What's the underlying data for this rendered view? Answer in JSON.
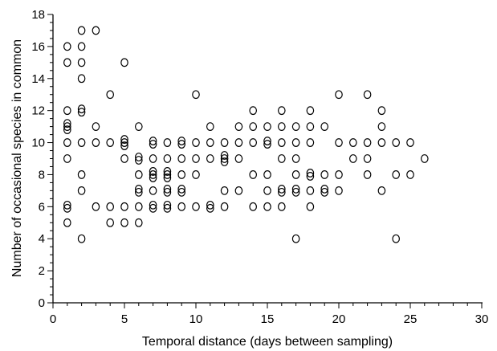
{
  "chart_data": {
    "type": "scatter",
    "title": "",
    "xlabel": "Temporal distance (days between sampling)",
    "ylabel": "Number of occasional species in common",
    "xlim": [
      0,
      30
    ],
    "ylim": [
      0,
      18
    ],
    "x_ticks": [
      "0",
      "5",
      "10",
      "15",
      "20",
      "25",
      "30"
    ],
    "y_ticks": [
      "0",
      "2",
      "4",
      "6",
      "8",
      "10",
      "12",
      "14",
      "16",
      "18"
    ],
    "grid": false,
    "marker": "open-circle",
    "marker_color": "#000000",
    "points": [
      [
        1,
        16
      ],
      [
        1,
        15
      ],
      [
        1,
        12
      ],
      [
        1,
        11.2
      ],
      [
        1,
        11
      ],
      [
        1,
        10.8
      ],
      [
        1,
        10
      ],
      [
        1,
        9
      ],
      [
        1,
        6.1
      ],
      [
        1,
        5.9
      ],
      [
        1,
        5
      ],
      [
        2,
        17
      ],
      [
        2,
        16
      ],
      [
        2,
        15
      ],
      [
        2,
        14
      ],
      [
        2,
        12.1
      ],
      [
        2,
        11.9
      ],
      [
        2,
        10
      ],
      [
        2,
        8
      ],
      [
        2,
        7
      ],
      [
        2,
        4
      ],
      [
        3,
        17
      ],
      [
        3,
        11
      ],
      [
        3,
        10
      ],
      [
        3,
        6
      ],
      [
        4,
        13
      ],
      [
        4,
        10
      ],
      [
        4,
        6
      ],
      [
        4,
        5
      ],
      [
        5,
        15
      ],
      [
        5,
        10.2
      ],
      [
        5,
        10
      ],
      [
        5,
        9.8
      ],
      [
        5,
        9
      ],
      [
        5,
        6
      ],
      [
        5,
        5
      ],
      [
        6,
        11
      ],
      [
        6,
        9.1
      ],
      [
        6,
        8.9
      ],
      [
        6,
        8
      ],
      [
        6,
        7.1
      ],
      [
        6,
        6.9
      ],
      [
        6,
        6
      ],
      [
        6,
        5
      ],
      [
        7,
        10.1
      ],
      [
        7,
        9.9
      ],
      [
        7,
        9
      ],
      [
        7,
        8.2
      ],
      [
        7,
        8
      ],
      [
        7,
        7.8
      ],
      [
        7,
        7
      ],
      [
        7,
        6.1
      ],
      [
        7,
        5.9
      ],
      [
        8,
        10
      ],
      [
        8,
        9
      ],
      [
        8,
        8.2
      ],
      [
        8,
        8
      ],
      [
        8,
        7.8
      ],
      [
        8,
        7.1
      ],
      [
        8,
        6.9
      ],
      [
        8,
        6.1
      ],
      [
        8,
        5.9
      ],
      [
        9,
        10.1
      ],
      [
        9,
        9.9
      ],
      [
        9,
        9
      ],
      [
        9,
        8
      ],
      [
        9,
        7.1
      ],
      [
        9,
        6.9
      ],
      [
        9,
        6
      ],
      [
        10,
        13
      ],
      [
        10,
        10
      ],
      [
        10,
        9
      ],
      [
        10,
        8
      ],
      [
        10,
        6
      ],
      [
        11,
        11
      ],
      [
        11,
        10
      ],
      [
        11,
        9
      ],
      [
        11,
        6.1
      ],
      [
        11,
        5.9
      ],
      [
        12,
        10
      ],
      [
        12,
        9.2
      ],
      [
        12,
        9
      ],
      [
        12,
        8.8
      ],
      [
        12,
        7
      ],
      [
        12,
        6
      ],
      [
        13,
        11
      ],
      [
        13,
        10
      ],
      [
        13,
        9
      ],
      [
        13,
        7
      ],
      [
        14,
        12
      ],
      [
        14,
        11
      ],
      [
        14,
        10
      ],
      [
        14,
        8
      ],
      [
        14,
        6
      ],
      [
        15,
        11
      ],
      [
        15,
        10.1
      ],
      [
        15,
        9.9
      ],
      [
        15,
        8
      ],
      [
        15,
        7
      ],
      [
        15,
        6
      ],
      [
        16,
        12
      ],
      [
        16,
        11
      ],
      [
        16,
        10
      ],
      [
        16,
        9
      ],
      [
        16,
        7.1
      ],
      [
        16,
        6.9
      ],
      [
        16,
        6
      ],
      [
        17,
        11
      ],
      [
        17,
        10
      ],
      [
        17,
        9
      ],
      [
        17,
        8
      ],
      [
        17,
        7.1
      ],
      [
        17,
        6.9
      ],
      [
        17,
        4
      ],
      [
        18,
        12
      ],
      [
        18,
        11
      ],
      [
        18,
        10
      ],
      [
        18,
        8.1
      ],
      [
        18,
        7.9
      ],
      [
        18,
        7
      ],
      [
        18,
        6
      ],
      [
        19,
        11
      ],
      [
        19,
        8
      ],
      [
        19,
        7.1
      ],
      [
        19,
        6.9
      ],
      [
        20,
        13
      ],
      [
        20,
        10
      ],
      [
        20,
        8
      ],
      [
        20,
        7
      ],
      [
        21,
        10
      ],
      [
        21,
        9
      ],
      [
        22,
        13
      ],
      [
        22,
        10
      ],
      [
        22,
        9
      ],
      [
        22,
        8
      ],
      [
        23,
        12
      ],
      [
        23,
        11
      ],
      [
        23,
        10
      ],
      [
        23,
        7
      ],
      [
        24,
        10
      ],
      [
        24,
        8
      ],
      [
        24,
        4
      ],
      [
        25,
        10
      ],
      [
        25,
        8
      ],
      [
        26,
        9
      ]
    ]
  }
}
